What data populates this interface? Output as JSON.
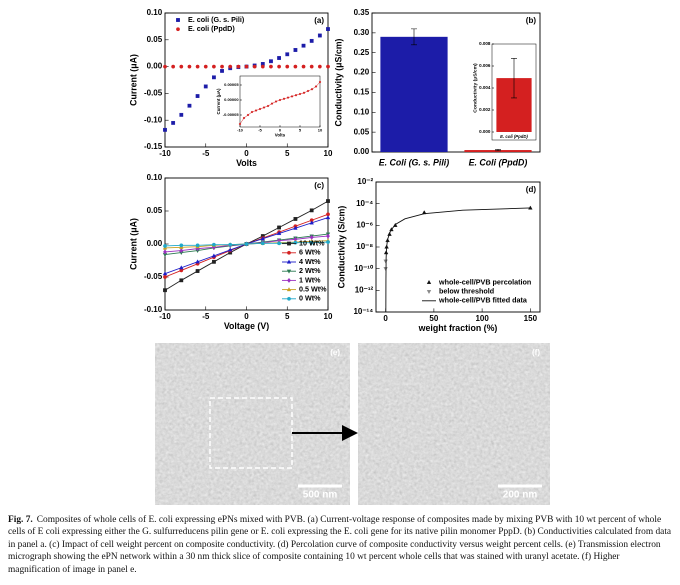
{
  "chart_data": [
    {
      "type": "line",
      "panel_label": "(a)",
      "xlabel": "Volts",
      "ylabel": "Current (μA)",
      "x": [
        -10,
        -9,
        -8,
        -7,
        -6,
        -5,
        -4,
        -3,
        -2,
        -1,
        0,
        1,
        2,
        3,
        4,
        5,
        6,
        7,
        8,
        9,
        10
      ],
      "series": [
        {
          "name": "E. coli (G. s. Pili)",
          "color": "#1c1ca8",
          "marker": "square",
          "style": "markers",
          "values": [
            -0.118,
            -0.105,
            -0.09,
            -0.073,
            -0.055,
            -0.037,
            -0.02,
            -0.008,
            -0.003,
            -0.001,
            0,
            0.002,
            0.005,
            0.01,
            0.016,
            0.023,
            0.031,
            0.039,
            0.048,
            0.058,
            0.07
          ]
        },
        {
          "name": "E. coli (PpdD)",
          "color": "#d42020",
          "marker": "circle",
          "style": "markers",
          "values": [
            -8e-05,
            -6e-05,
            -5e-05,
            -4e-05,
            -3.5e-05,
            -3e-05,
            -2.5e-05,
            -2e-05,
            -1.2e-05,
            -5e-06,
            0,
            4e-06,
            8e-06,
            1.2e-05,
            1.6e-05,
            2e-05,
            2.4e-05,
            3e-05,
            3.6e-05,
            4.5e-05,
            6e-05
          ]
        }
      ],
      "xlim": [
        -10,
        10
      ],
      "ylim": [
        -0.15,
        0.1
      ],
      "xticks": [
        -10,
        -5,
        0,
        5,
        10
      ],
      "yticks": [
        {
          "value": 0.1,
          "label": "0.10"
        },
        {
          "value": 0.05,
          "label": "0.05"
        },
        {
          "value": 0,
          "label": "0.00"
        },
        {
          "value": -0.05,
          "label": "-0.05"
        },
        {
          "value": -0.1,
          "label": "-0.10"
        },
        {
          "value": -0.15,
          "label": "-0.15"
        }
      ],
      "legend": "upper left"
    },
    {
      "type": "line",
      "xlabel": "Volts",
      "ylabel": "Current (μA)",
      "x": [
        -10,
        -9,
        -8,
        -7,
        -6,
        -5,
        -4,
        -3,
        -2,
        -1,
        0,
        1,
        2,
        3,
        4,
        5,
        6,
        7,
        8,
        9,
        10
      ],
      "series": [
        {
          "color": "#d42020",
          "marker": "circle",
          "style": "line+markers",
          "values": [
            -8e-05,
            -6e-05,
            -5e-05,
            -4e-05,
            -3.5e-05,
            -3e-05,
            -2.5e-05,
            -2e-05,
            -1.2e-05,
            -5e-06,
            0,
            4e-06,
            8e-06,
            1.2e-05,
            1.6e-05,
            2e-05,
            2.4e-05,
            3e-05,
            3.6e-05,
            4.5e-05,
            6e-05
          ]
        }
      ],
      "xlim": [
        -10,
        10
      ],
      "ylim": [
        -9e-05,
        8e-05
      ],
      "xticks": [
        -10,
        -5,
        0,
        5,
        10
      ],
      "yticks": [
        5e-05,
        {
          "value": 0,
          "label": "0.00000"
        },
        -5e-05
      ]
    },
    {
      "type": "bar",
      "panel_label": "(b)",
      "ylabel": "Conductivity (μS/cm)",
      "categories": [
        "E. Coli (G. s. Pili)",
        "E. Coli (PpdD)"
      ],
      "values": [
        0.29,
        0.0049
      ],
      "errors": [
        0.02,
        0.0018
      ],
      "colors": [
        "#1c1ca8",
        "#d42020"
      ],
      "ylim": [
        0,
        0.35
      ],
      "yticks": [
        {
          "value": 0,
          "label": "0.00"
        },
        {
          "value": 0.05,
          "label": "0.05"
        },
        {
          "value": 0.1,
          "label": "0.10"
        },
        {
          "value": 0.15,
          "label": "0.15"
        },
        {
          "value": 0.2,
          "label": "0.20"
        },
        {
          "value": 0.25,
          "label": "0.25"
        },
        {
          "value": 0.3,
          "label": "0.30"
        },
        {
          "value": 0.35,
          "label": "0.35"
        }
      ]
    },
    {
      "type": "bar",
      "ylabel": "Conductivity (μS/cm)",
      "categories": [
        "E. coli (PpdD)"
      ],
      "values": [
        0.0049
      ],
      "errors": [
        0.0018
      ],
      "colors": [
        "#d42020"
      ],
      "ylim": [
        0,
        0.008
      ],
      "yticks": [
        {
          "value": 0,
          "label": "0.000"
        },
        {
          "value": 0.002,
          "label": "0.002"
        },
        {
          "value": 0.004,
          "label": "0.004"
        },
        {
          "value": 0.006,
          "label": "0.006"
        },
        {
          "value": 0.008,
          "label": "0.008"
        }
      ]
    },
    {
      "type": "line",
      "panel_label": "(c)",
      "xlabel": "Voltage (V)",
      "ylabel": "Current (μA)",
      "x": [
        -10,
        -8,
        -6,
        -4,
        -2,
        0,
        2,
        4,
        6,
        8,
        10
      ],
      "series": [
        {
          "name": "10 Wt%",
          "color": "#222222",
          "marker": "square",
          "style": "line+markers",
          "values": [
            -0.07,
            -0.055,
            -0.041,
            -0.027,
            -0.013,
            0,
            0.012,
            0.025,
            0.038,
            0.051,
            0.065
          ]
        },
        {
          "name": "6 Wt%",
          "color": "#d42020",
          "marker": "circle",
          "style": "line+markers",
          "values": [
            -0.05,
            -0.04,
            -0.03,
            -0.02,
            -0.01,
            0,
            0.009,
            0.018,
            0.027,
            0.036,
            0.045
          ]
        },
        {
          "name": "4 Wt%",
          "color": "#1c1cc8",
          "marker": "triangle",
          "style": "line+markers",
          "values": [
            -0.045,
            -0.036,
            -0.027,
            -0.018,
            -0.009,
            0,
            0.008,
            0.016,
            0.024,
            0.032,
            0.04
          ]
        },
        {
          "name": "2 Wt%",
          "color": "#2a7a50",
          "marker": "triangle-down",
          "style": "line+markers",
          "values": [
            -0.016,
            -0.013,
            -0.01,
            -0.006,
            -0.003,
            0,
            0.003,
            0.006,
            0.009,
            0.012,
            0.015
          ]
        },
        {
          "name": "1 Wt%",
          "color": "#9a30c0",
          "marker": "diamond",
          "style": "line+markers",
          "values": [
            -0.012,
            -0.01,
            -0.007,
            -0.005,
            -0.002,
            0,
            0.002,
            0.005,
            0.007,
            0.01,
            0.012
          ]
        },
        {
          "name": "0.5 Wt%",
          "color": "#c8a020",
          "marker": "triangle",
          "style": "line+markers",
          "values": [
            -0.006,
            -0.005,
            -0.004,
            -0.002,
            -0.001,
            0,
            0.001,
            0.002,
            0.003,
            0.004,
            0.005
          ]
        },
        {
          "name": "0 Wt%",
          "color": "#20a8c8",
          "marker": "circle",
          "style": "line+markers",
          "values": [
            -0.003,
            -0.002,
            -0.002,
            -0.001,
            -0.001,
            0,
            0.001,
            0.001,
            0.002,
            0.002,
            0.003
          ]
        }
      ],
      "xlim": [
        -10,
        10
      ],
      "ylim": [
        -0.1,
        0.1
      ],
      "xticks": [
        -10,
        -5,
        0,
        5,
        10
      ],
      "yticks": [
        {
          "value": 0.1,
          "label": "0.10"
        },
        {
          "value": 0.05,
          "label": "0.05"
        },
        {
          "value": 0,
          "label": "0.00"
        },
        {
          "value": -0.05,
          "label": "-0.05"
        },
        {
          "value": -0.1,
          "label": "-0.10"
        }
      ],
      "legend": "lower right"
    },
    {
      "type": "scatter",
      "panel_label": "(d)",
      "xlabel": "weight fraction (%)",
      "ylabel": "Conductivity (S/cm)",
      "log_y": true,
      "series": [
        {
          "name": "whole-cell/PVB percolation",
          "color": "#111111",
          "marker": "triangle",
          "style": "markers",
          "x": [
            0.5,
            1,
            2,
            4,
            6,
            10,
            40,
            150
          ],
          "values": [
            3e-09,
            1e-08,
            4e-08,
            1.5e-07,
            4e-07,
            1e-06,
            1.5e-05,
            4e-05
          ]
        },
        {
          "name": "below threshold",
          "color": "#888888",
          "marker": "triangle-down",
          "style": "markers",
          "x": [
            0,
            0
          ],
          "values": [
            5e-10,
            1e-10
          ]
        },
        {
          "name": "whole-cell/PVB fitted data",
          "color": "#111111",
          "style": "line",
          "x": [
            0.2,
            0.3,
            0.5,
            1,
            2,
            5,
            10,
            20,
            40,
            80,
            150
          ],
          "values": [
            1e-14,
            1e-11,
            1e-09,
            1e-08,
            5e-08,
            3e-07,
            1.2e-06,
            4e-06,
            1.2e-05,
            2.5e-05,
            4e-05
          ]
        }
      ],
      "xlim": [
        -10,
        160
      ],
      "ylim": [
        1e-14,
        0.01
      ],
      "xticks": [
        0,
        50,
        100,
        150
      ],
      "yticks": [
        {
          "value": 0.01,
          "label": "10⁻²"
        },
        {
          "value": 0.0001,
          "label": "10⁻⁴"
        },
        {
          "value": 1e-06,
          "label": "10⁻⁶"
        },
        {
          "value": 1e-08,
          "label": "10⁻⁸"
        },
        {
          "value": 1e-10,
          "label": "10⁻¹⁰"
        },
        {
          "value": 1e-12,
          "label": "10⁻¹²"
        },
        {
          "value": 1e-14,
          "label": "10⁻¹⁴"
        }
      ],
      "legend": "lower right"
    }
  ],
  "images": [
    {
      "panel_label": "(e)",
      "scale_bar": "500 nm"
    },
    {
      "panel_label": "(f)",
      "scale_bar": "200 nm"
    }
  ],
  "caption": {
    "label": "Fig. 7.",
    "text": "Composites of whole cells of E. coli expressing ePNs mixed with PVB. (a) Current-voltage response of composites made by mixing PVB with 10 wt percent of whole cells of E coli expressing either the G. sulfurreducens pilin gene or E. coli expressing the E. coli gene for its native pilin monomer PppD. (b) Conductivities calculated from data in panel a. (c) Impact of cell weight percent on composite conductivity. (d) Percolation curve of composite conductivity versus weight percent cells. (e) Transmission electron micrograph showing the ePN network within a 30 nm thick slice of composite containing 10 wt percent whole cells that was stained with uranyl acetate. (f) Higher magnification of image in panel e."
  }
}
